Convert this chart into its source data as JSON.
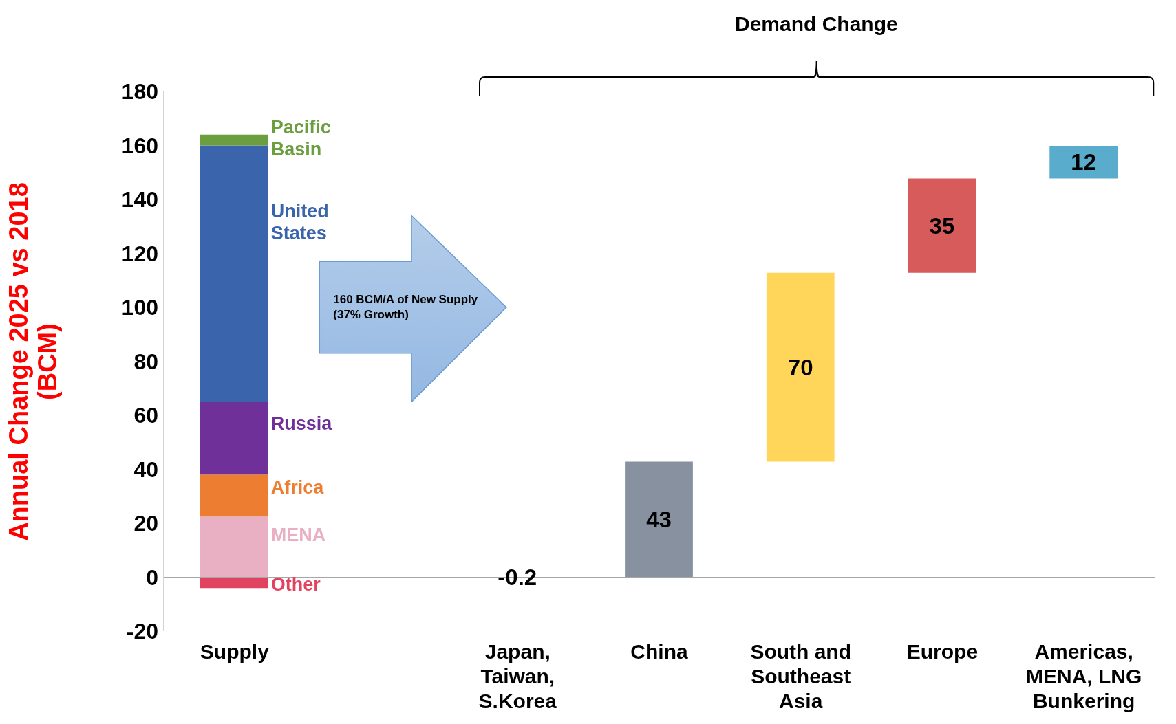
{
  "chart_data": {
    "type": "bar",
    "categories": [
      "Supply",
      null,
      "Japan, Taiwan, S.Korea",
      "China",
      "South and Southeast Asia",
      "Europe",
      "Americas, MENA, LNG Bunkering"
    ],
    "ylabel": "Annual Change 2025 vs 2018 (BCM)",
    "ylim": [
      -20,
      180
    ],
    "yticks": [
      -20,
      0,
      20,
      40,
      60,
      80,
      100,
      120,
      140,
      160,
      180
    ],
    "stacked": true,
    "legend": false,
    "grid": false,
    "ref_lines": [
      {
        "axis": "y",
        "value": 0,
        "color": "#a6a6a6"
      }
    ],
    "annotations": [
      "Demand Change",
      "160 BCM/A of New Supply (37% Growth)"
    ],
    "series": [
      {
        "name": "Other",
        "color": "#e0425f",
        "values": [
          -4,
          null,
          null,
          null,
          null,
          null,
          null
        ]
      },
      {
        "name": "MENA",
        "color": "#e8b0c2",
        "values": [
          22.5,
          null,
          null,
          null,
          null,
          null,
          null
        ]
      },
      {
        "name": "Africa",
        "color": "#ed7d31",
        "values": [
          15.5,
          null,
          null,
          null,
          null,
          null,
          null
        ]
      },
      {
        "name": "Russia",
        "color": "#70309a",
        "values": [
          27,
          null,
          null,
          null,
          null,
          null,
          null
        ]
      },
      {
        "name": "United States",
        "color": "#3a64ab",
        "values": [
          95,
          null,
          null,
          null,
          null,
          null,
          null
        ]
      },
      {
        "name": "Pacific Basin",
        "color": "#6a9e3f",
        "values": [
          4,
          null,
          null,
          null,
          null,
          null,
          null
        ]
      },
      {
        "type": "bar",
        "values": [
          null,
          null,
          -0.2,
          43,
          70,
          35,
          12
        ],
        "base": [
          null,
          null,
          0,
          -0.2,
          42.8,
          112.8,
          147.8
        ],
        "colors": [
          "#000000",
          "#000000",
          "#d75b5b",
          "#8891a0",
          "#ffd55a",
          "#d75b5b",
          "#5aaccd"
        ],
        "value_labels": [
          null,
          null,
          "-0.2",
          "43",
          "70",
          "35",
          "12"
        ]
      }
    ]
  }
}
